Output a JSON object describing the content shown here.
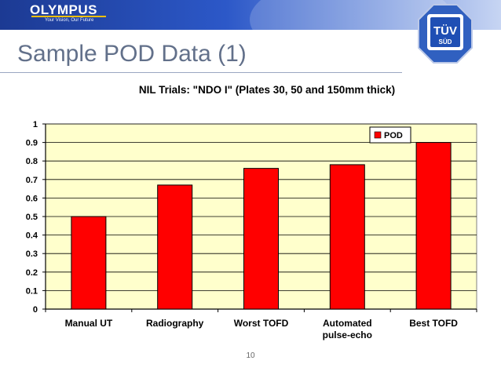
{
  "header": {
    "logo": "OLYMPUS",
    "tagline": "Your Vision, Our Future",
    "badge_top": "TÜV",
    "badge_bottom": "SÜD"
  },
  "slide": {
    "title": "Sample POD Data (1)",
    "page_number": "10"
  },
  "colors": {
    "bar": "#ff0000",
    "plot_bg": "#ffffcc",
    "header_blue": "#1c3a93"
  },
  "chart_data": {
    "type": "bar",
    "title": "NIL Trials: \"NDO I\" (Plates 30, 50 and 150mm thick)",
    "categories": [
      [
        "Manual UT"
      ],
      [
        "Radiography"
      ],
      [
        "Worst TOFD"
      ],
      [
        "Automated",
        "pulse-echo"
      ],
      [
        "Best TOFD"
      ]
    ],
    "series": [
      {
        "name": "POD",
        "values": [
          0.5,
          0.67,
          0.76,
          0.78,
          0.9
        ]
      }
    ],
    "ylim": [
      0,
      1
    ],
    "yticks": [
      "0",
      "0.1",
      "0.2",
      "0.3",
      "0.4",
      "0.5",
      "0.6",
      "0.7",
      "0.8",
      "0.9",
      "1"
    ],
    "grid": true,
    "legend": "top-right"
  }
}
